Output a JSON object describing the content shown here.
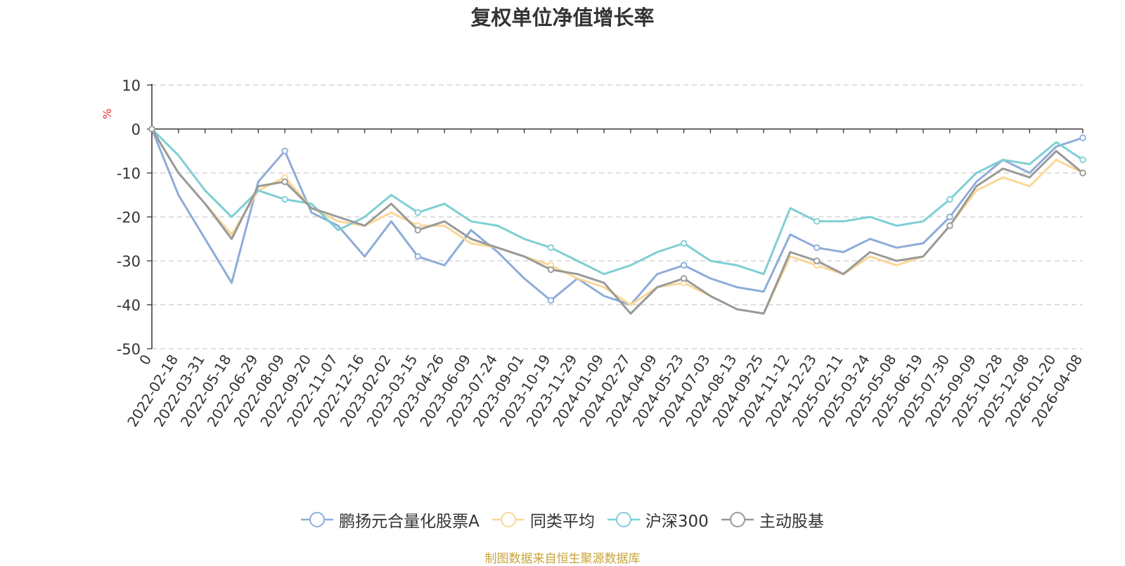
{
  "chart_data": {
    "type": "line",
    "title": "复权单位净值增长率",
    "ylabel": "%",
    "xlabel": "",
    "ylim": [
      -50,
      10
    ],
    "yticks": [
      10,
      0,
      -10,
      -20,
      -30,
      -40,
      -50
    ],
    "ytick_labels": [
      "10",
      "0",
      "-10",
      "-20",
      "-30",
      "-40",
      "-50"
    ],
    "grid": true,
    "legend_position": "bottom",
    "x_tick_labels": [
      "0",
      "2022-02-18",
      "2022-03-31",
      "2022-05-18",
      "2022-06-29",
      "2022-08-09",
      "2022-09-20",
      "2022-11-07",
      "2022-12-16",
      "2023-02-02",
      "2023-03-15",
      "2023-04-26",
      "2023-06-09",
      "2023-07-24",
      "2023-09-01",
      "2023-10-19",
      "2023-11-29",
      "2024-01-09",
      "2024-02-27",
      "2024-04-09",
      "2024-05-23",
      "2024-07-03",
      "2024-08-13",
      "2024-09-25",
      "2024-11-12",
      "2024-12-23",
      "2025-02-11",
      "2025-03-24",
      "2025-05-08",
      "2025-06-19",
      "2025-07-30",
      "2025-09-09",
      "2025-10-28",
      "2025-12-08",
      "2026-01-20",
      "2026-04-08"
    ],
    "x": [
      0,
      1,
      2,
      3,
      4,
      5,
      6,
      7,
      8,
      9,
      10,
      11,
      12,
      13,
      14,
      15,
      16,
      17,
      18,
      19,
      20,
      21,
      22,
      23,
      24,
      25,
      26,
      27,
      28,
      29,
      30,
      31,
      32,
      33,
      34,
      35
    ],
    "series": [
      {
        "name": "鹏扬元合量化股票A",
        "color": "#8eacd9",
        "values": [
          0,
          -15,
          -25,
          -35,
          -12,
          -5,
          -19,
          -22,
          -29,
          -21,
          -29,
          -31,
          -23,
          -28,
          -34,
          -39,
          -34,
          -38,
          -40,
          -33,
          -31,
          -34,
          -36,
          -37,
          -24,
          -27,
          -28,
          -25,
          -27,
          -26,
          -20,
          -12,
          -7,
          -10,
          -4,
          -2
        ]
      },
      {
        "name": "同类平均",
        "color": "#fad797",
        "values": [
          0,
          -10,
          -17,
          -24,
          -14,
          -11,
          -18,
          -21,
          -22,
          -19,
          -22,
          -22,
          -26,
          -27,
          -29,
          -31,
          -34,
          -36,
          -40,
          -36,
          -35,
          -38,
          -41,
          -42,
          -29,
          -31,
          -33,
          -29,
          -31,
          -29,
          -22,
          -14,
          -11,
          -13,
          -7,
          -10
        ]
      },
      {
        "name": "沪深300",
        "color": "#7ecfd4",
        "values": [
          0,
          -6,
          -14,
          -20,
          -14,
          -16,
          -17,
          -23,
          -20,
          -15,
          -19,
          -17,
          -21,
          -22,
          -25,
          -27,
          -30,
          -33,
          -31,
          -28,
          -26,
          -30,
          -31,
          -33,
          -18,
          -21,
          -21,
          -20,
          -22,
          -21,
          -16,
          -10,
          -7,
          -8,
          -3,
          -7
        ]
      },
      {
        "name": "主动股基",
        "color": "#999999",
        "values": [
          0,
          -10,
          -17,
          -25,
          -13,
          -12,
          -18,
          -20,
          -22,
          -17,
          -23,
          -21,
          -25,
          -27,
          -29,
          -32,
          -33,
          -35,
          -42,
          -36,
          -34,
          -38,
          -41,
          -42,
          -28,
          -30,
          -33,
          -28,
          -30,
          -29,
          -22,
          -13,
          -9,
          -11,
          -5,
          -10
        ]
      }
    ]
  },
  "footer": "制图数据来自恒生聚源数据库"
}
